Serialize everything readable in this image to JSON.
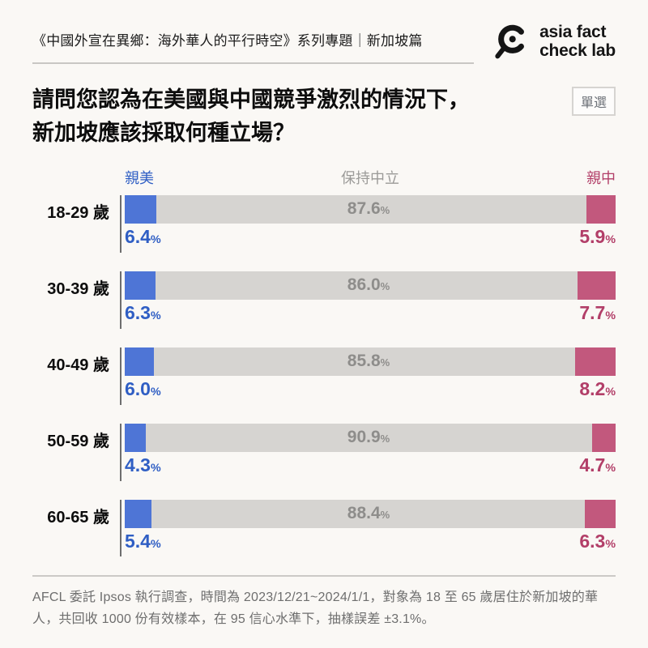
{
  "header": {
    "series_title": "《中國外宣在異鄉：海外華人的平行時空》系列專題｜新加坡篇",
    "logo": {
      "icon": "magnifier-icon",
      "line1": "asia fact",
      "line2": "check lab"
    }
  },
  "question": {
    "title_line1": "請問您認為在美國與中國競爭激烈的情況下，",
    "title_line2": "新加坡應該採取何種立場？",
    "badge_label": "單選"
  },
  "chart_data": {
    "type": "bar",
    "orientation": "horizontal-stacked",
    "title": "請問您認為在美國與中國競爭激烈的情況下，新加坡應該採取何種立場？",
    "categories": [
      "18-29 歲",
      "30-39 歲",
      "40-49 歲",
      "50-59 歲",
      "60-65 歲"
    ],
    "series": [
      {
        "name": "親美",
        "bar_color": "#4e75d6",
        "text_color": "#2f5ec4",
        "values": [
          6.4,
          6.3,
          6.0,
          4.3,
          5.4
        ]
      },
      {
        "name": "保持中立",
        "bar_color": "#d6d4d1",
        "text_color": "#9b9a98",
        "values": [
          87.6,
          86.0,
          85.8,
          90.9,
          88.4
        ]
      },
      {
        "name": "親中",
        "bar_color": "#c2587d",
        "text_color": "#b23e68",
        "values": [
          5.9,
          7.7,
          8.2,
          4.7,
          6.3
        ]
      }
    ],
    "value_suffix": "%",
    "xlim": [
      0,
      100
    ],
    "legend_position": "top",
    "grid": false
  },
  "footer": {
    "source_note": "AFCL 委託 Ipsos 執行調查，時間為 2023/12/21~2024/1/1，對象為 18 至 65 歲居住於新加坡的華人，共回收 1000 份有效樣本，在 95 信心水準下，抽樣誤差 ±3.1%。"
  }
}
